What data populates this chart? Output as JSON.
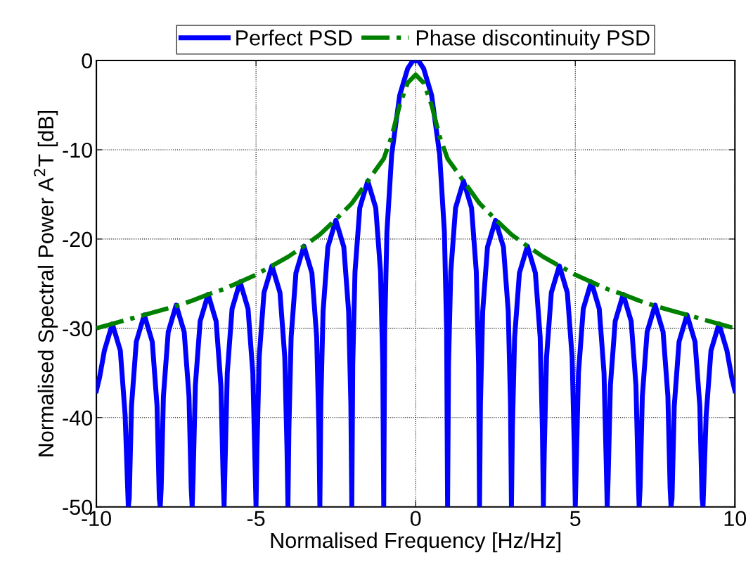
{
  "chart_data": {
    "type": "line",
    "xlabel": "Normalised Frequency [Hz/Hz]",
    "ylabel": "Normalised Spectral Power A$^{2}$T [dB]",
    "xlim": [
      -10,
      10
    ],
    "xticks": [
      {
        "value": -10,
        "label": "-10"
      },
      {
        "value": -5,
        "label": "-5"
      },
      0,
      5,
      10
    ],
    "ylim": [
      -50,
      0
    ],
    "yticks": [
      {
        "value": -50,
        "label": "-50"
      },
      {
        "value": -40,
        "label": "-40"
      },
      {
        "value": -30,
        "label": "-30"
      },
      {
        "value": -20,
        "label": "-20"
      },
      {
        "value": -10,
        "label": "-10"
      },
      0
    ],
    "grid": true,
    "legend": "top",
    "marker": "none",
    "series": [
      {
        "name": "Perfect PSD",
        "color": "#0000ff",
        "line_style": "solid",
        "x": [
          -10,
          -9.9,
          -9.75,
          -9.5,
          -9.25,
          -9.1,
          -9,
          -8.97,
          -8.9,
          -8.75,
          -8.5,
          -8.25,
          -8.1,
          -8.03,
          -8,
          -7.97,
          -7.9,
          -7.75,
          -7.5,
          -7.25,
          -7.1,
          -7.03,
          -7,
          -6.97,
          -6.9,
          -6.75,
          -6.5,
          -6.25,
          -6.1,
          -6.03,
          -6,
          -5.97,
          -5.9,
          -5.75,
          -5.5,
          -5.25,
          -5.1,
          -5.03,
          -5,
          -4.97,
          -4.9,
          -4.75,
          -4.5,
          -4.25,
          -4.1,
          -4.03,
          -4,
          -3.97,
          -3.9,
          -3.75,
          -3.5,
          -3.25,
          -3.1,
          -3.03,
          -3,
          -2.97,
          -2.9,
          -2.75,
          -2.5,
          -2.25,
          -2.1,
          -2.03,
          -2,
          -1.97,
          -1.9,
          -1.75,
          -1.5,
          -1.25,
          -1.1,
          -1.03,
          -1,
          -0.97,
          -0.9,
          -0.75,
          -0.5,
          -0.25,
          -0.1,
          0,
          0.1,
          0.25,
          0.5,
          0.75,
          0.9,
          0.97,
          1,
          1.03,
          1.1,
          1.25,
          1.5,
          1.75,
          1.9,
          1.97,
          2,
          2.03,
          2.1,
          2.25,
          2.5,
          2.75,
          2.9,
          2.97,
          3,
          3.03,
          3.1,
          3.25,
          3.5,
          3.75,
          3.9,
          3.97,
          4,
          4.03,
          4.1,
          4.25,
          4.5,
          4.75,
          4.9,
          4.97,
          5,
          5.03,
          5.1,
          5.25,
          5.5,
          5.75,
          5.9,
          5.97,
          6,
          6.03,
          6.1,
          6.25,
          6.5,
          6.75,
          6.9,
          6.97,
          7,
          7.03,
          7.1,
          7.25,
          7.5,
          7.75,
          7.9,
          7.97,
          8,
          8.03,
          8.1,
          8.25,
          8.5,
          8.75,
          8.9,
          8.97,
          9,
          9.1,
          9.25,
          9.5,
          9.75,
          9.9,
          10
        ],
        "values": [
          -37,
          -35.5,
          -32.5,
          -29.5,
          -32.5,
          -39.7,
          -50,
          -49,
          -38.7,
          -31.5,
          -28.5,
          -31.5,
          -38.7,
          -49,
          -50,
          -47.9,
          -37.6,
          -30.4,
          -27.4,
          -30.4,
          -37.6,
          -47.9,
          -50,
          -46.7,
          -36.4,
          -29.2,
          -26.2,
          -29.2,
          -36.4,
          -46.7,
          -50,
          -45.3,
          -35,
          -27.8,
          -24.8,
          -27.8,
          -35,
          -45.3,
          -50,
          -43.5,
          -33.2,
          -26,
          -23,
          -26,
          -33.2,
          -43.5,
          -50,
          -41.3,
          -31,
          -23.8,
          -20.8,
          -23.8,
          -31,
          -41.3,
          -50,
          -38.4,
          -28.1,
          -20.9,
          -17.9,
          -20.9,
          -28.1,
          -38.4,
          -50,
          -34,
          -23.7,
          -16.5,
          -13.5,
          -16.5,
          -23.7,
          -34,
          -50,
          -30.2,
          -19.2,
          -10.5,
          -3.9,
          -0.9,
          -0.1,
          0,
          -0.1,
          -0.9,
          -3.9,
          -10.5,
          -19.2,
          -30.2,
          -50,
          -34,
          -23.7,
          -16.5,
          -13.5,
          -16.5,
          -23.7,
          -34,
          -50,
          -38.4,
          -28.1,
          -20.9,
          -17.9,
          -20.9,
          -28.1,
          -38.4,
          -50,
          -41.3,
          -31,
          -23.8,
          -20.8,
          -23.8,
          -31,
          -41.3,
          -50,
          -43.5,
          -33.2,
          -26,
          -23,
          -26,
          -33.2,
          -43.5,
          -50,
          -45.3,
          -35,
          -27.8,
          -24.8,
          -27.8,
          -35,
          -45.3,
          -50,
          -46.7,
          -36.4,
          -29.2,
          -26.2,
          -29.2,
          -36.4,
          -46.7,
          -50,
          -47.9,
          -37.6,
          -30.4,
          -27.4,
          -30.4,
          -37.6,
          -47.9,
          -50,
          -49,
          -38.7,
          -31.5,
          -28.5,
          -31.5,
          -38.7,
          -49,
          -50,
          -39.7,
          -32.5,
          -29.5,
          -32.5,
          -35.5,
          -37
        ]
      },
      {
        "name": "Phase discontinuity PSD",
        "color": "#008000",
        "line_style": "dashdot",
        "x": [
          -10,
          -9.5,
          -9,
          -8.5,
          -8,
          -7.5,
          -7,
          -6.5,
          -6,
          -5.5,
          -5,
          -4.5,
          -4,
          -3.5,
          -3,
          -2.5,
          -2,
          -1.5,
          -1,
          -0.75,
          -0.5,
          -0.25,
          0,
          0.25,
          0.5,
          0.75,
          1,
          1.5,
          2,
          2.5,
          3,
          3.5,
          4,
          4.5,
          5,
          5.5,
          6,
          6.5,
          7,
          7.5,
          8,
          8.5,
          9,
          9.5,
          10
        ],
        "values": [
          -30,
          -29.5,
          -29,
          -28.5,
          -28,
          -27.5,
          -26.9,
          -26.2,
          -25.6,
          -24.8,
          -24,
          -23,
          -22,
          -20.8,
          -19.5,
          -17.8,
          -16,
          -13.5,
          -11,
          -8.5,
          -5,
          -2.5,
          -1.6,
          -2.5,
          -5,
          -8.5,
          -11,
          -13.5,
          -16,
          -17.8,
          -19.5,
          -20.8,
          -22,
          -23,
          -24,
          -24.8,
          -25.6,
          -26.2,
          -26.9,
          -27.5,
          -28,
          -28.5,
          -29,
          -29.5,
          -30
        ]
      }
    ]
  }
}
